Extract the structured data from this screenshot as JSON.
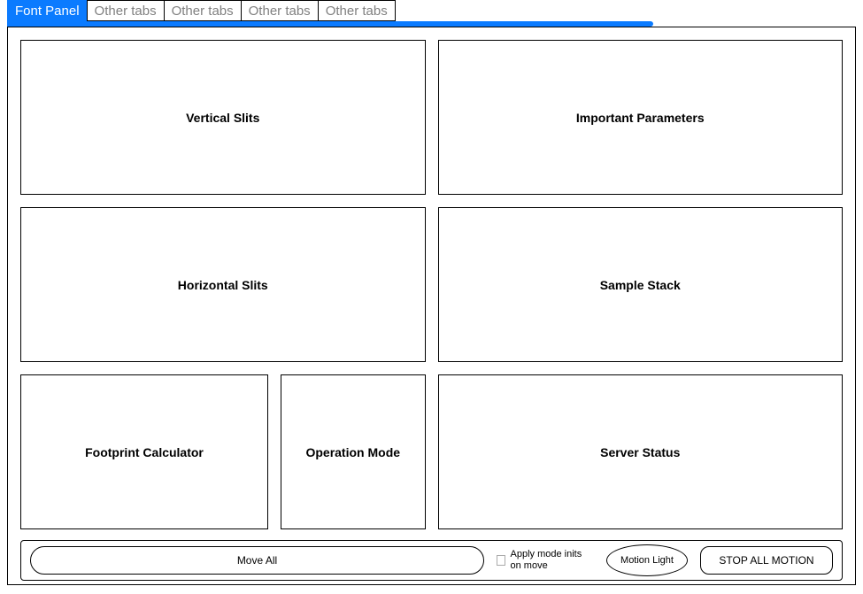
{
  "colors": {
    "accent": "#0b7bff",
    "tab_inactive_text": "#808080",
    "border": "#000000",
    "background": "#ffffff"
  },
  "tabs": [
    {
      "label": "Font Panel",
      "active": true
    },
    {
      "label": "Other tabs",
      "active": false
    },
    {
      "label": "Other tabs",
      "active": false
    },
    {
      "label": "Other tabs",
      "active": false
    },
    {
      "label": "Other tabs",
      "active": false
    }
  ],
  "panels": {
    "vertical_slits": "Vertical Slits",
    "important_parameters": "Important Parameters",
    "horizontal_slits": "Horizontal Slits",
    "sample_stack": "Sample Stack",
    "footprint_calculator": "Footprint Calculator",
    "operation_mode": "Operation Mode",
    "server_status": "Server Status"
  },
  "footer": {
    "move_all_label": "Move All",
    "apply_mode_label": "Apply mode inits on move",
    "apply_mode_checked": false,
    "motion_light_label": "Motion Light",
    "stop_label": "STOP ALL MOTION"
  }
}
